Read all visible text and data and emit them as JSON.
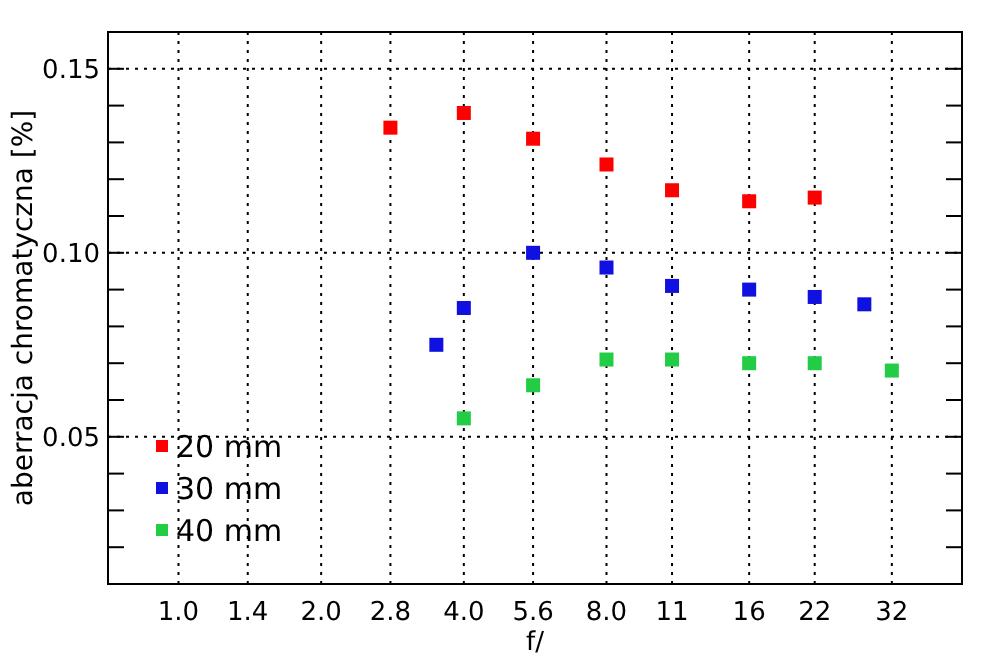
{
  "chart_data": {
    "type": "scatter",
    "xlabel": "f/",
    "ylabel": "aberracja chromatyczna [%]",
    "log": "x",
    "xlim": [
      0.71,
      45
    ],
    "xticks": [
      {
        "value": 1,
        "label": "1.0"
      },
      1.4,
      {
        "value": 2,
        "label": "2.0"
      },
      2.8,
      {
        "value": 4,
        "label": "4.0"
      },
      5.6,
      {
        "value": 8,
        "label": "8.0"
      },
      11,
      16,
      22,
      32
    ],
    "ylim": [
      0.01,
      0.16
    ],
    "yticks": [
      {
        "value": 0.02,
        "label": null
      },
      {
        "value": 0.03,
        "label": null
      },
      {
        "value": 0.04,
        "label": null
      },
      {
        "value": 0.05,
        "label": "0.05"
      },
      {
        "value": 0.06,
        "label": null
      },
      {
        "value": 0.07,
        "label": null
      },
      {
        "value": 0.08,
        "label": null
      },
      {
        "value": 0.09,
        "label": null
      },
      {
        "value": 0.1,
        "label": "0.10"
      },
      {
        "value": 0.11,
        "label": null
      },
      {
        "value": 0.12,
        "label": null
      },
      {
        "value": 0.13,
        "label": null
      },
      {
        "value": 0.14,
        "label": null
      },
      {
        "value": 0.15,
        "label": "0.15"
      }
    ],
    "grid": true,
    "legend": "bottom left",
    "marker": "square",
    "series": [
      {
        "name": "20 mm",
        "color": "#ff0000",
        "x": [
          2.8,
          4.0,
          5.6,
          8.0,
          11,
          16,
          22
        ],
        "values": [
          0.134,
          0.138,
          0.131,
          0.124,
          0.117,
          0.114,
          0.115
        ]
      },
      {
        "name": "30 mm",
        "color": "#1010e0",
        "x": [
          3.5,
          4.0,
          5.6,
          8.0,
          11,
          16,
          22,
          28
        ],
        "values": [
          0.075,
          0.085,
          0.1,
          0.096,
          0.091,
          0.09,
          0.088,
          0.086
        ]
      },
      {
        "name": "40 mm",
        "color": "#22cc44",
        "x": [
          4.0,
          5.6,
          8.0,
          11,
          16,
          22,
          32
        ],
        "values": [
          0.055,
          0.064,
          0.071,
          0.071,
          0.07,
          0.07,
          0.068
        ]
      }
    ]
  }
}
